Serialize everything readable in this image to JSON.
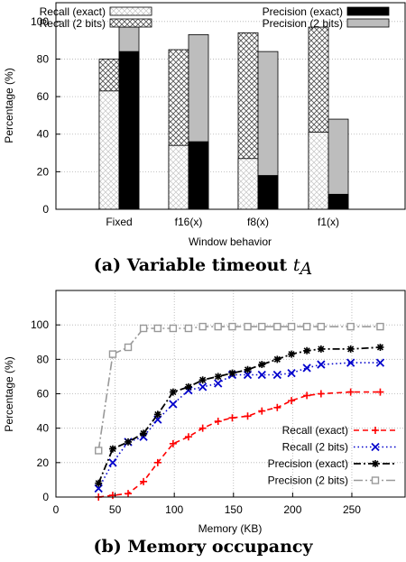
{
  "colors": {
    "precision_exact": "#000000",
    "precision_2bits": "#bdbdbd",
    "recall_exact_line": "#ff0000",
    "recall_2bits_line": "#0000cc",
    "precision_exact_line": "#000000",
    "precision_2bits_line": "#999999"
  },
  "chart_data": [
    {
      "type": "bar",
      "caption_prefix": "(a) Variable timeout ",
      "caption_symbol": "t",
      "caption_subscript": "A",
      "xlabel": "Window behavior",
      "ylabel": "Percentage (%)",
      "ylim": [
        0,
        110
      ],
      "yticks": [
        0,
        20,
        40,
        60,
        80,
        100
      ],
      "grid": true,
      "legend": "top",
      "categories": [
        "Fixed",
        "f16(x)",
        "f8(x)",
        "f1(x)"
      ],
      "series": [
        {
          "name": "Recall (exact)",
          "values": [
            63,
            34,
            27,
            41
          ]
        },
        {
          "name": "Recall (2 bits)",
          "values": [
            80,
            85,
            94,
            97
          ]
        },
        {
          "name": "Precision (exact)",
          "values": [
            84,
            36,
            18,
            8
          ]
        },
        {
          "name": "Precision (2 bits)",
          "values": [
            97,
            93,
            84,
            48
          ]
        }
      ]
    },
    {
      "type": "line",
      "caption": "(b) Memory occupancy",
      "xlabel": "Memory (KB)",
      "ylabel": "Percentage (%)",
      "xlim": [
        0,
        295
      ],
      "ylim": [
        0,
        120
      ],
      "xticks": [
        0,
        50,
        100,
        150,
        200,
        250
      ],
      "yticks": [
        0,
        20,
        40,
        60,
        80,
        100
      ],
      "grid": true,
      "legend": "bottom-right",
      "series": [
        {
          "name": "Recall (exact)",
          "x": [
            36,
            48,
            61,
            74,
            86,
            99,
            112,
            124,
            137,
            149,
            162,
            174,
            187,
            199,
            212,
            224,
            249,
            274
          ],
          "y": [
            0,
            1,
            2,
            9,
            20,
            31,
            35,
            40,
            44,
            46,
            47,
            50,
            52,
            56,
            59,
            60,
            61,
            61
          ]
        },
        {
          "name": "Recall (2 bits)",
          "x": [
            36,
            48,
            61,
            74,
            86,
            99,
            112,
            124,
            137,
            149,
            162,
            174,
            187,
            199,
            212,
            224,
            249,
            274
          ],
          "y": [
            5,
            20,
            32,
            35,
            45,
            54,
            62,
            64,
            66,
            71,
            71,
            71,
            71,
            72,
            75,
            77,
            78,
            78
          ]
        },
        {
          "name": "Precision (exact)",
          "x": [
            36,
            48,
            61,
            74,
            86,
            99,
            112,
            124,
            137,
            149,
            162,
            174,
            187,
            199,
            212,
            224,
            249,
            274
          ],
          "y": [
            8,
            28,
            32,
            37,
            48,
            61,
            64,
            68,
            70,
            72,
            74,
            77,
            80,
            83,
            85,
            86,
            86,
            87
          ]
        },
        {
          "name": "Precision (2 bits)",
          "x": [
            36,
            48,
            61,
            74,
            86,
            99,
            112,
            124,
            137,
            149,
            162,
            174,
            187,
            199,
            212,
            224,
            249,
            274
          ],
          "y": [
            27,
            83,
            87,
            98,
            98,
            98,
            98,
            99,
            99,
            99,
            99,
            99,
            99,
            99,
            99,
            99,
            99,
            99
          ]
        }
      ]
    }
  ]
}
